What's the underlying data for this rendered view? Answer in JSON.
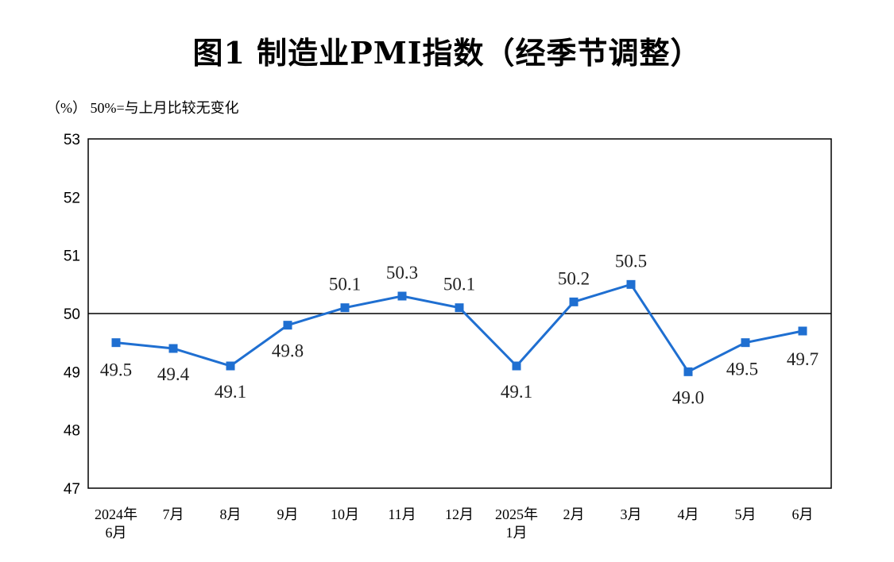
{
  "title": "图1  制造业PMI指数（经季节调整）",
  "note": "（%）  50%=与上月比较无变化",
  "colors": {
    "line": "#1f6fd1",
    "axis": "#000000",
    "reference": "#000000"
  },
  "chart_data": {
    "type": "line",
    "title": "图1  制造业PMI指数（经季节调整）",
    "ylabel": "（%）",
    "ylim": [
      47,
      53
    ],
    "yticks": [
      47,
      48,
      49,
      50,
      51,
      52,
      53
    ],
    "reference_line": 50,
    "reference_note": "50%=与上月比较无变化",
    "grid": false,
    "legend": "none",
    "categories": [
      [
        "2024年",
        "6月"
      ],
      [
        "7月"
      ],
      [
        "8月"
      ],
      [
        "9月"
      ],
      [
        "10月"
      ],
      [
        "11月"
      ],
      [
        "12月"
      ],
      [
        "2025年",
        "1月"
      ],
      [
        "2月"
      ],
      [
        "3月"
      ],
      [
        "4月"
      ],
      [
        "5月"
      ],
      [
        "6月"
      ]
    ],
    "series": [
      {
        "values": [
          49.5,
          49.4,
          49.1,
          49.8,
          50.1,
          50.3,
          50.1,
          49.1,
          50.2,
          50.5,
          49.0,
          49.5,
          49.7
        ],
        "labels": [
          "49.5",
          "49.4",
          "49.1",
          "49.8",
          "50.1",
          "50.3",
          "50.1",
          "49.1",
          "50.2",
          "50.5",
          "49.0",
          "49.5",
          "49.7"
        ]
      }
    ]
  }
}
